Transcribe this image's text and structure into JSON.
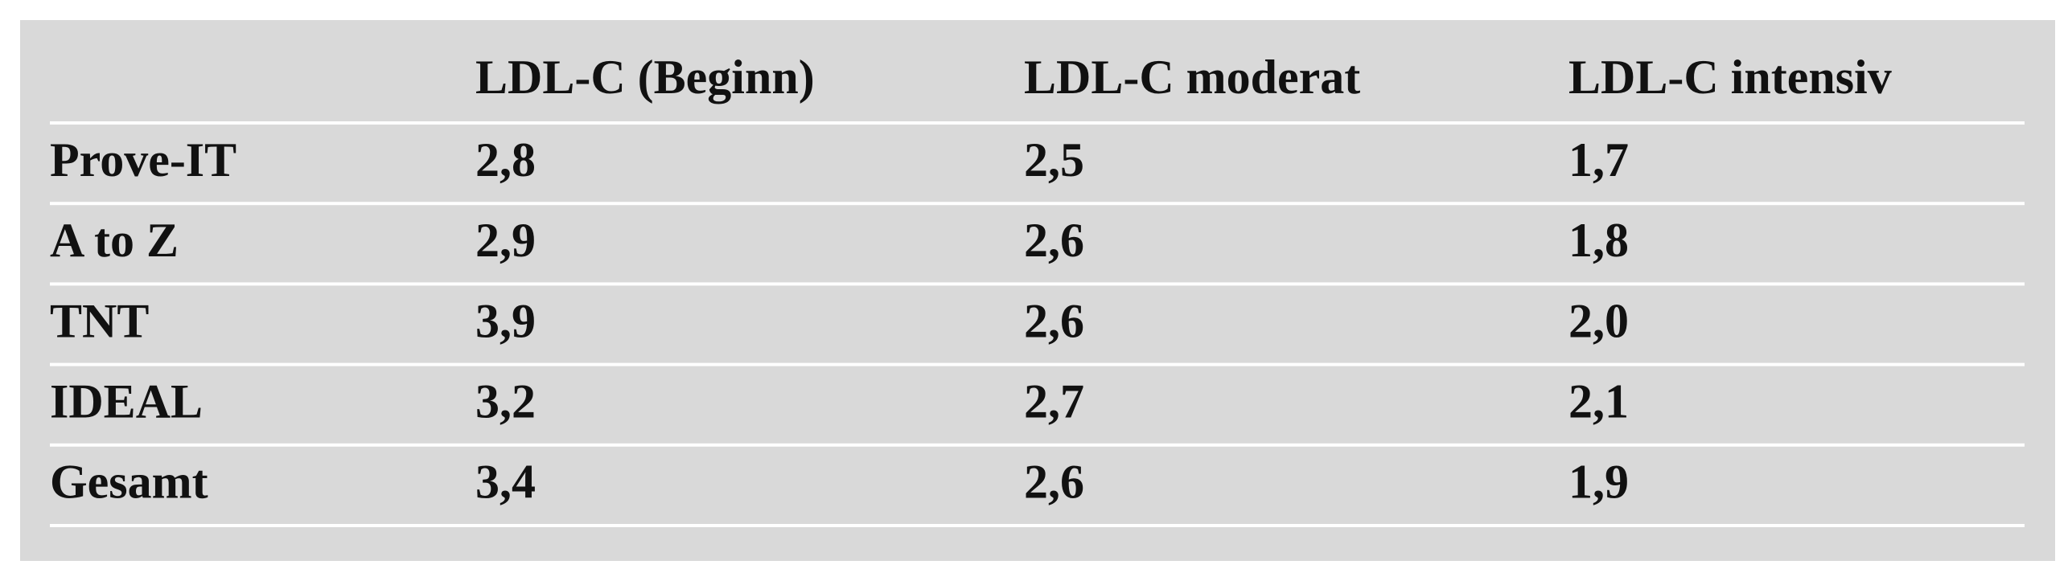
{
  "table": {
    "columns": [
      "LDL-C (Beginn)",
      "LDL-C moderat",
      "LDL-C intensiv"
    ],
    "rows": [
      {
        "label": "Prove-IT",
        "cells": [
          "2,8",
          "2,5",
          "1,7"
        ]
      },
      {
        "label": "A to Z",
        "cells": [
          "2,9",
          "2,6",
          "1,8"
        ]
      },
      {
        "label": "TNT",
        "cells": [
          "3,9",
          "2,6",
          "2,0"
        ]
      },
      {
        "label": "IDEAL",
        "cells": [
          "3,2",
          "2,7",
          "2,1"
        ]
      },
      {
        "label": "Gesamt",
        "cells": [
          "3,4",
          "2,6",
          "1,9"
        ]
      }
    ]
  }
}
